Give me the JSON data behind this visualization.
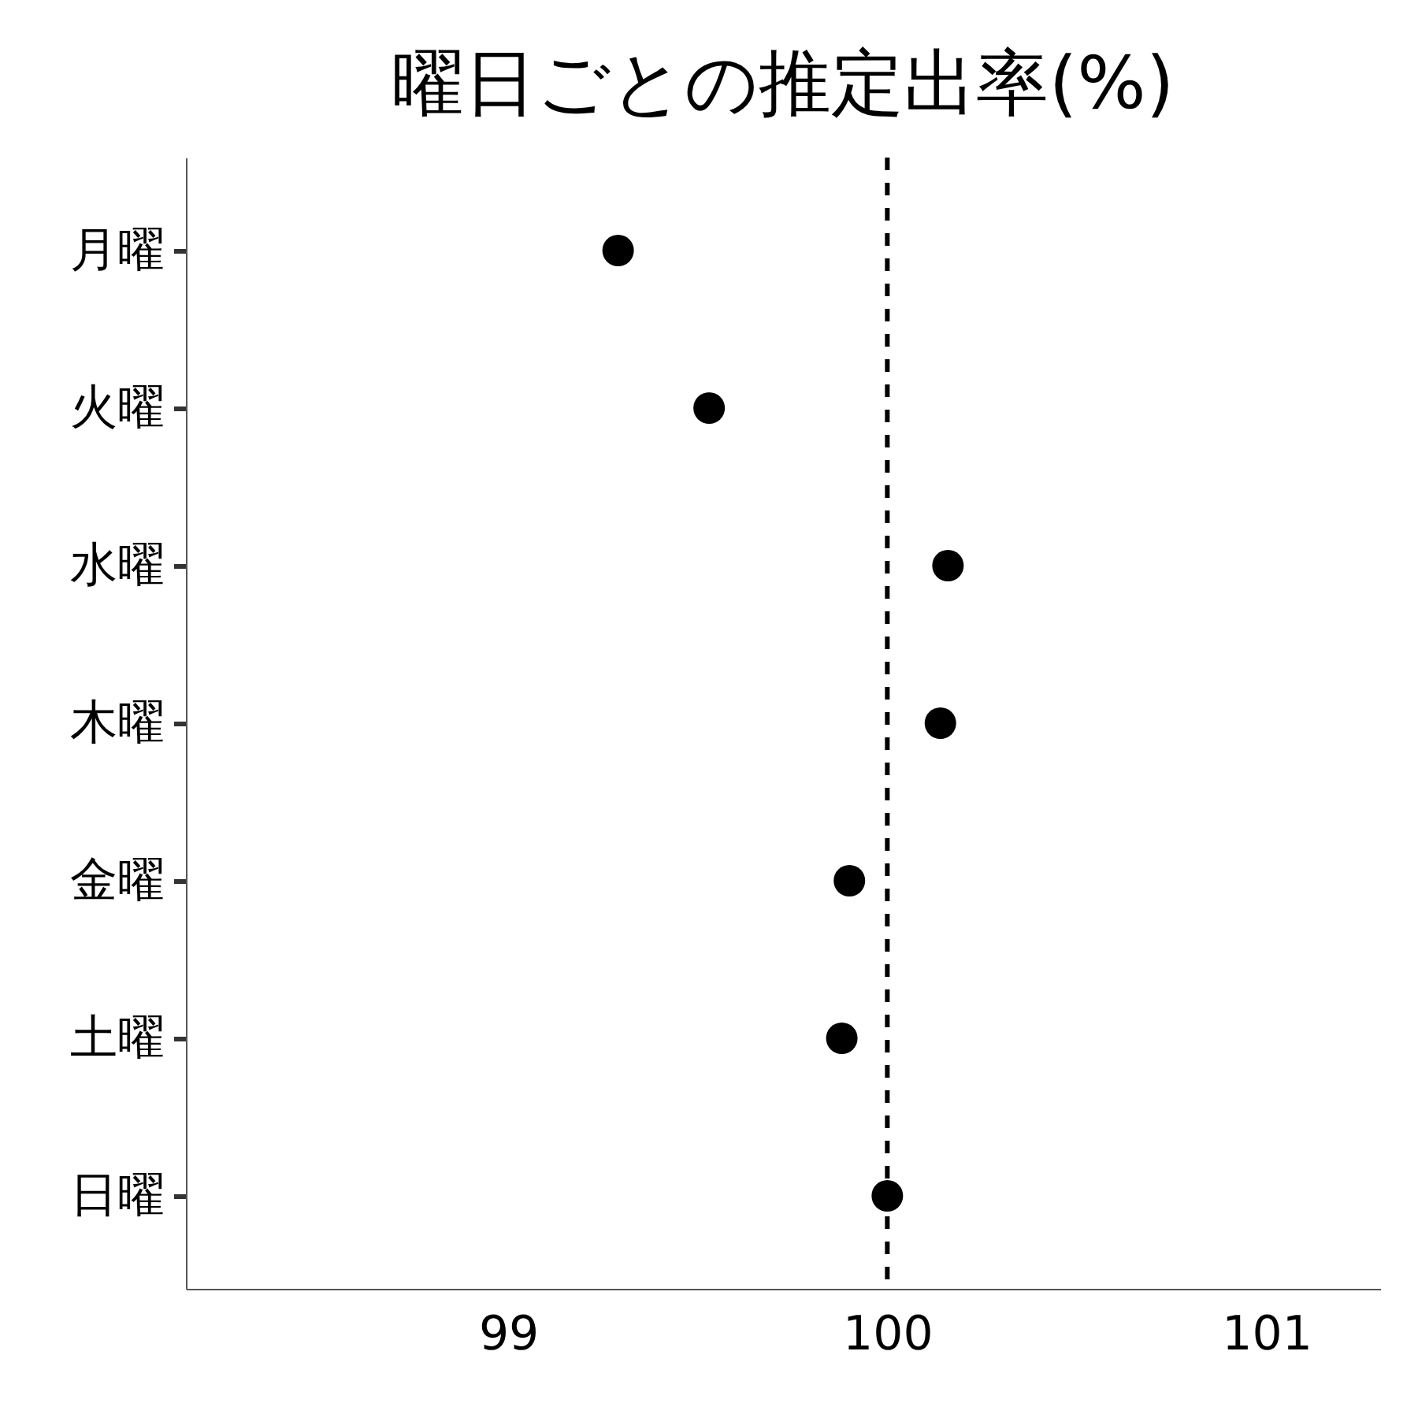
{
  "chart_data": {
    "type": "scatter",
    "title": "曜日ごとの推定出率(%)",
    "orientation": "horizontal",
    "categories": [
      "月曜",
      "火曜",
      "水曜",
      "木曜",
      "金曜",
      "土曜",
      "日曜"
    ],
    "values": [
      99.29,
      99.53,
      100.16,
      100.14,
      99.9,
      99.88,
      100.0
    ],
    "color": "#000000",
    "marker": "circle",
    "xlim": [
      98.15,
      101.3
    ],
    "xticks": [
      99,
      100,
      101
    ],
    "ref_lines": [
      {
        "axis": "x",
        "value": 100,
        "line_style": "dashed",
        "color": "#000000"
      }
    ]
  }
}
